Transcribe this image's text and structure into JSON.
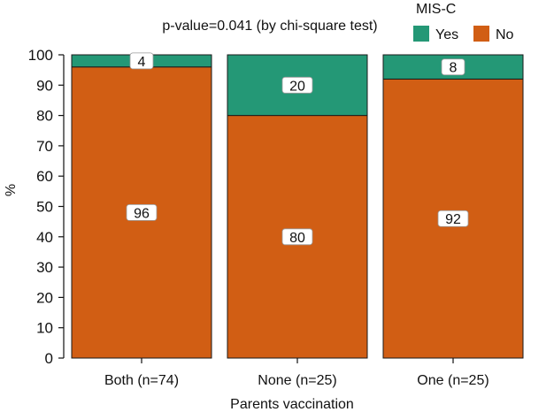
{
  "chart_data": {
    "type": "bar",
    "stacked": true,
    "subtitle": "p-value=0.041 (by chi-square test)",
    "xlabel": "Parents vaccination",
    "ylabel": "%",
    "ylim": [
      0,
      100
    ],
    "yticks": [
      0,
      10,
      20,
      30,
      40,
      50,
      60,
      70,
      80,
      90,
      100
    ],
    "categories": [
      "Both (n=74)",
      "None (n=25)",
      "One (n=25)"
    ],
    "legend": {
      "title": "MIS-C",
      "position": "top-right"
    },
    "grid": false,
    "series": [
      {
        "name": "No",
        "color": "#d15e14",
        "values": [
          96,
          80,
          92
        ]
      },
      {
        "name": "Yes",
        "color": "#249876",
        "values": [
          4,
          20,
          8
        ]
      }
    ],
    "legend_order": [
      "Yes",
      "No"
    ]
  }
}
